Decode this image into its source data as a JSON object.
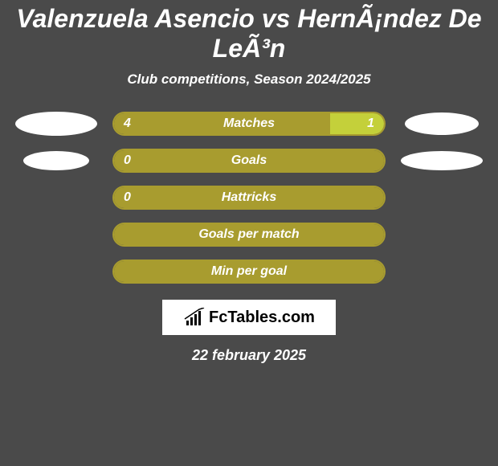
{
  "title": "Valenzuela Asencio vs HernÃ¡ndez De LeÃ³n",
  "subtitle": "Club competitions, Season 2024/2025",
  "date": "22 february 2025",
  "logo_text": "FcTables.com",
  "colors": {
    "background": "#4a4a4a",
    "bar_border": "#a89c2f",
    "bar_left": "#a89c2f",
    "bar_right": "#c4d03a",
    "avatar": "#ffffff",
    "text": "#ffffff"
  },
  "avatar_sizes": {
    "row0": {
      "left_w": 102,
      "left_h": 30,
      "right_w": 92,
      "right_h": 28
    },
    "row1": {
      "left_w": 82,
      "left_h": 24,
      "right_w": 102,
      "right_h": 24
    },
    "row2": {
      "left_w": 0,
      "left_h": 0,
      "right_w": 0,
      "right_h": 0
    },
    "row3": {
      "left_w": 0,
      "left_h": 0,
      "right_w": 0,
      "right_h": 0
    },
    "row4": {
      "left_w": 0,
      "left_h": 0,
      "right_w": 0,
      "right_h": 0
    }
  },
  "rows": [
    {
      "label": "Matches",
      "left_value": "4",
      "right_value": "1",
      "left_pct": 80,
      "right_pct": 20,
      "show_left": true,
      "show_right": true
    },
    {
      "label": "Goals",
      "left_value": "0",
      "right_value": "",
      "left_pct": 100,
      "right_pct": 0,
      "show_left": true,
      "show_right": false
    },
    {
      "label": "Hattricks",
      "left_value": "0",
      "right_value": "",
      "left_pct": 100,
      "right_pct": 0,
      "show_left": true,
      "show_right": false
    },
    {
      "label": "Goals per match",
      "left_value": "",
      "right_value": "",
      "left_pct": 100,
      "right_pct": 0,
      "show_left": false,
      "show_right": false
    },
    {
      "label": "Min per goal",
      "left_value": "",
      "right_value": "",
      "left_pct": 100,
      "right_pct": 0,
      "show_left": false,
      "show_right": false
    }
  ]
}
